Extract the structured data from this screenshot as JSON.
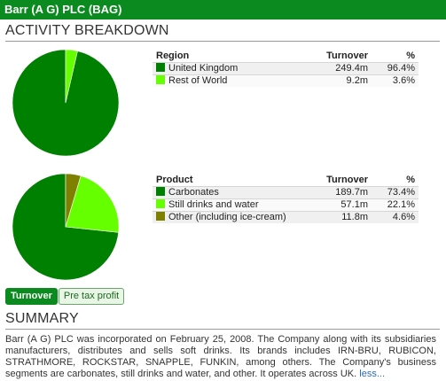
{
  "header": {
    "title": "Barr (A G) PLC (BAG)"
  },
  "activity": {
    "heading": "ACTIVITY BREAKDOWN"
  },
  "colors": {
    "title_bar": "#0a8a1f",
    "series": [
      "#008000",
      "#66ff00",
      "#808000"
    ]
  },
  "region": {
    "columns": [
      "Region",
      "Turnover",
      "%"
    ],
    "rows": [
      {
        "name": "United Kingdom",
        "turnover": "249.4m",
        "pct": "96.4%",
        "color": "#008000"
      },
      {
        "name": "Rest of World",
        "turnover": "9.2m",
        "pct": "3.6%",
        "color": "#66ff00"
      }
    ]
  },
  "product": {
    "columns": [
      "Product",
      "Turnover",
      "%"
    ],
    "rows": [
      {
        "name": "Carbonates",
        "turnover": "189.7m",
        "pct": "73.4%",
        "color": "#008000"
      },
      {
        "name": "Still drinks and water",
        "turnover": "57.1m",
        "pct": "22.1%",
        "color": "#66ff00"
      },
      {
        "name": "Other (including ice-cream)",
        "turnover": "11.8m",
        "pct": "4.6%",
        "color": "#808000"
      }
    ]
  },
  "tabs": {
    "turnover": "Turnover",
    "pretax": "Pre tax profit"
  },
  "summary": {
    "heading": "SUMMARY",
    "text": "Barr (A G) PLC was incorporated on February 25, 2008. The Company along with its subsidiaries manufacturers, distributes and sells soft drinks. Its brands includes IRN-BRU, RUBICON, STRATHMORE, ROCKSTAR, SNAPPLE, FUNKIN, among others. The Company's business segments are carbonates, still drinks and water, and other. It operates across UK.",
    "less_link": "less..."
  },
  "chart_data": [
    {
      "type": "pie",
      "categories": [
        "United Kingdom",
        "Rest of World"
      ],
      "values": [
        96.4,
        3.6
      ],
      "turnover": [
        "249.4m",
        "9.2m"
      ]
    },
    {
      "type": "pie",
      "categories": [
        "Carbonates",
        "Still drinks and water",
        "Other (including ice-cream)"
      ],
      "values": [
        73.4,
        22.1,
        4.6
      ],
      "turnover": [
        "189.7m",
        "57.1m",
        "11.8m"
      ]
    }
  ]
}
